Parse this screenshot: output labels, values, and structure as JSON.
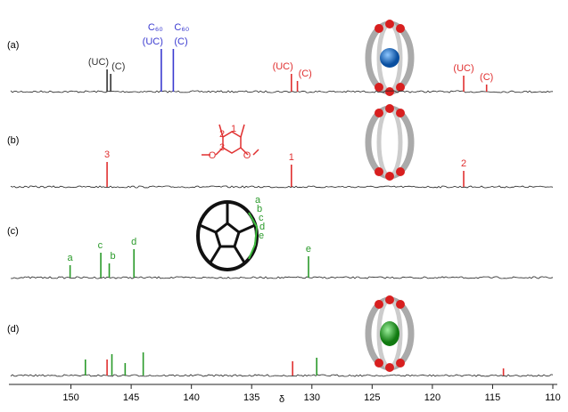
{
  "chart_data": {
    "type": "spectrum",
    "xlabel": "δ",
    "xlim": [
      155,
      110
    ],
    "xticks": [
      150,
      145,
      140,
      135,
      130,
      125,
      120,
      115,
      110
    ],
    "ylim": [
      0,
      60
    ],
    "panels": [
      {
        "label": "(a)",
        "peaks": [
          {
            "x": 147.0,
            "height": 25,
            "color": "#333333",
            "labels": [
              "(UC)"
            ]
          },
          {
            "x": 146.7,
            "height": 20,
            "color": "#333333",
            "labels": [
              "(C)"
            ]
          },
          {
            "x": 142.5,
            "height": 48,
            "color": "#3b3bd0",
            "labels": [
              "C₆₀",
              "(UC)"
            ]
          },
          {
            "x": 141.5,
            "height": 48,
            "color": "#3b3bd0",
            "labels": [
              "C₆₀",
              "(C)"
            ]
          },
          {
            "x": 131.7,
            "height": 20,
            "color": "#e03030",
            "labels": [
              "(UC)"
            ]
          },
          {
            "x": 131.2,
            "height": 12,
            "color": "#e03030",
            "labels": [
              "(C)"
            ]
          },
          {
            "x": 117.4,
            "height": 18,
            "color": "#e03030",
            "labels": [
              "(UC)"
            ]
          },
          {
            "x": 115.5,
            "height": 8,
            "color": "#e03030",
            "labels": [
              "(C)"
            ]
          }
        ]
      },
      {
        "label": "(b)",
        "peaks": [
          {
            "x": 147.0,
            "height": 28,
            "color": "#e03030",
            "labels": [
              "3"
            ]
          },
          {
            "x": 131.7,
            "height": 25,
            "color": "#e03030",
            "labels": [
              "1"
            ]
          },
          {
            "x": 117.4,
            "height": 18,
            "color": "#e03030",
            "labels": [
              "2"
            ]
          }
        ],
        "structure_labels": [
          "1",
          "2",
          "3",
          "O",
          "O"
        ]
      },
      {
        "label": "(c)",
        "peaks": [
          {
            "x": 150.07,
            "height": 14,
            "color": "#2a9a2a",
            "labels": [
              "a"
            ]
          },
          {
            "x": 147.52,
            "height": 28,
            "color": "#2a9a2a",
            "labels": [
              "c"
            ]
          },
          {
            "x": 146.82,
            "height": 16,
            "color": "#2a9a2a",
            "labels": [
              "b"
            ]
          },
          {
            "x": 144.77,
            "height": 32,
            "color": "#2a9a2a",
            "labels": [
              "d"
            ]
          },
          {
            "x": 130.28,
            "height": 24,
            "color": "#2a9a2a",
            "labels": [
              "e"
            ]
          }
        ],
        "cage_labels": [
          "a",
          "b",
          "c",
          "d",
          "e"
        ]
      },
      {
        "label": "(d)",
        "peaks": [
          {
            "x": 148.8,
            "height": 18,
            "color": "#2a9a2a"
          },
          {
            "x": 147.0,
            "height": 18,
            "color": "#e03030"
          },
          {
            "x": 146.6,
            "height": 24,
            "color": "#2a9a2a"
          },
          {
            "x": 145.5,
            "height": 14,
            "color": "#2a9a2a"
          },
          {
            "x": 144.0,
            "height": 26,
            "color": "#2a9a2a"
          },
          {
            "x": 131.6,
            "height": 16,
            "color": "#e03030"
          },
          {
            "x": 129.6,
            "height": 20,
            "color": "#2a9a2a"
          },
          {
            "x": 114.1,
            "height": 8,
            "color": "#e03030"
          }
        ]
      }
    ]
  }
}
